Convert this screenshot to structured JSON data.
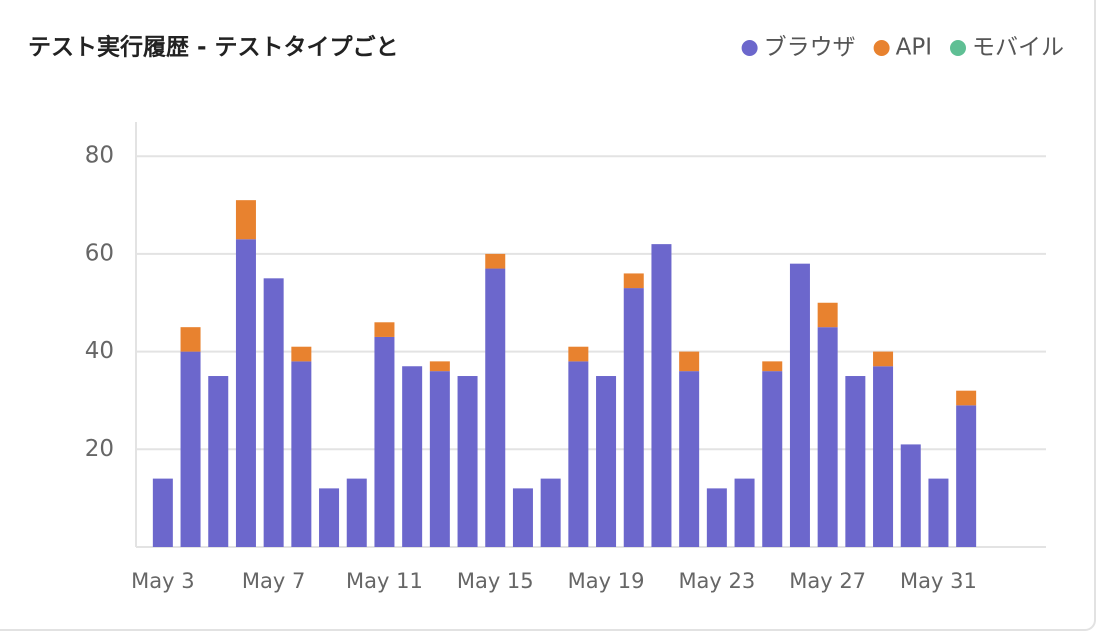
{
  "chart_data": {
    "type": "stacked_bar",
    "title": "テスト実行履歴 - テストタイプごと",
    "categories": [
      "May 3",
      null,
      null,
      null,
      "May 7",
      null,
      null,
      null,
      "May 11",
      null,
      null,
      null,
      "May 15",
      null,
      null,
      null,
      "May 19",
      null,
      null,
      null,
      "May 23",
      null,
      null,
      null,
      "May 27",
      null,
      null,
      null,
      "May 31",
      null
    ],
    "series": [
      {
        "name": "ブラウザ",
        "color": "#6c67cc",
        "values": [
          14,
          40,
          35,
          63,
          55,
          38,
          12,
          14,
          43,
          37,
          36,
          35,
          57,
          12,
          14,
          38,
          35,
          53,
          62,
          36,
          12,
          14,
          36,
          58,
          45,
          35,
          37,
          21,
          14,
          29
        ]
      },
      {
        "name": "API",
        "color": "#e8822f",
        "values": [
          0,
          5,
          0,
          8,
          0,
          3,
          0,
          0,
          3,
          0,
          2,
          0,
          3,
          0,
          0,
          3,
          0,
          3,
          0,
          4,
          0,
          0,
          2,
          0,
          5,
          0,
          3,
          0,
          0,
          3
        ]
      },
      {
        "name": "モバイル",
        "color": "#5fbf94",
        "values": [
          0,
          0,
          0,
          0,
          0,
          0,
          0,
          0,
          0,
          0,
          0,
          0,
          0,
          0,
          0,
          0,
          0,
          0,
          0,
          0,
          0,
          0,
          0,
          0,
          0,
          0,
          0,
          0,
          0,
          0
        ]
      }
    ],
    "ylim": [
      0,
      87
    ],
    "yticks": [
      20,
      40,
      60,
      80
    ],
    "grid": true,
    "legend": "top-right"
  }
}
